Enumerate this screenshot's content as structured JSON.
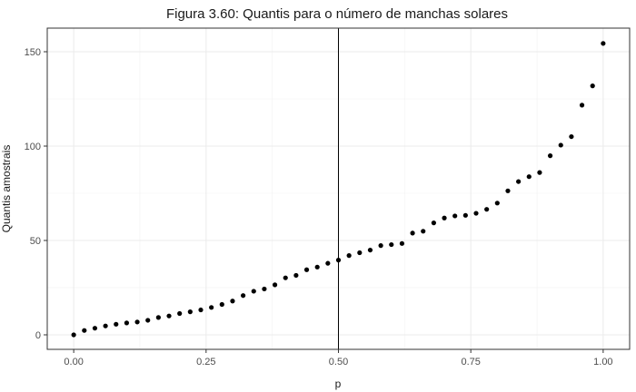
{
  "chart_data": {
    "type": "scatter",
    "title": "Figura 3.60: Quantis para o número de manchas solares",
    "xlabel": "p",
    "ylabel": "Quantis amostrais",
    "xlim": [
      -0.05,
      1.05
    ],
    "ylim": [
      -7.7,
      162.5
    ],
    "xticks": [
      0.0,
      0.25,
      0.5,
      0.75,
      1.0
    ],
    "xtick_labels": [
      "0.00",
      "0.25",
      "0.50",
      "0.75",
      "1.00"
    ],
    "yticks": [
      0,
      50,
      100,
      150
    ],
    "ytick_labels": [
      "0",
      "50",
      "100",
      "150"
    ],
    "grid": true,
    "vline_x": 0.5,
    "x": [
      0.0,
      0.02,
      0.04,
      0.06,
      0.08,
      0.1,
      0.12,
      0.14,
      0.16,
      0.18,
      0.2,
      0.22,
      0.24,
      0.26,
      0.28,
      0.3,
      0.32,
      0.34,
      0.36,
      0.38,
      0.4,
      0.42,
      0.44,
      0.46,
      0.48,
      0.5,
      0.52,
      0.54,
      0.56,
      0.58,
      0.6,
      0.62,
      0.64,
      0.66,
      0.68,
      0.7,
      0.72,
      0.74,
      0.76,
      0.78,
      0.8,
      0.82,
      0.84,
      0.86,
      0.88,
      0.9,
      0.92,
      0.94,
      0.96,
      0.98,
      1.0
    ],
    "y": [
      0.0,
      2.3,
      3.5,
      4.7,
      5.6,
      6.3,
      6.8,
      7.7,
      9.2,
      10.0,
      11.3,
      12.2,
      13.2,
      14.5,
      16.1,
      17.9,
      20.8,
      23.1,
      24.3,
      26.5,
      30.2,
      31.5,
      34.5,
      35.9,
      37.9,
      39.6,
      42.0,
      43.5,
      44.9,
      47.3,
      47.8,
      48.4,
      53.9,
      54.9,
      59.3,
      61.9,
      63.0,
      63.3,
      64.4,
      66.5,
      69.8,
      76.3,
      81.2,
      83.8,
      86.0,
      94.9,
      100.5,
      105.0,
      121.7,
      131.9,
      154.4
    ]
  }
}
